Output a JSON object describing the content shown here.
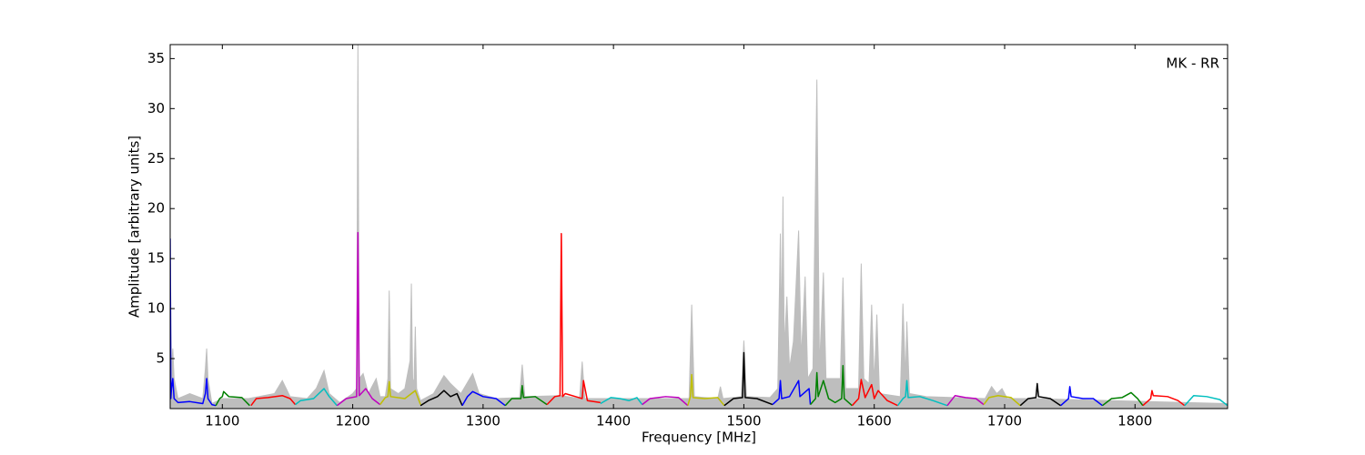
{
  "chart_data": {
    "type": "line",
    "xlabel": "Frequency [MHz]",
    "ylabel": "Amplitude [arbitrary units]",
    "annotation": "MK - RR",
    "xlim": [
      1060,
      1871
    ],
    "ylim": [
      0,
      36.4
    ],
    "xticks": [
      1100,
      1200,
      1300,
      1400,
      1500,
      1600,
      1700,
      1800
    ],
    "yticks": [
      5,
      10,
      15,
      20,
      25,
      30,
      35
    ],
    "series": [
      {
        "kind": "area",
        "color": "#bebebe",
        "x": [
          1060,
          1061,
          1062,
          1063,
          1066,
          1075,
          1085,
          1087,
          1088,
          1089,
          1092,
          1100,
          1120,
          1140,
          1146,
          1152,
          1165,
          1172,
          1178,
          1182,
          1190,
          1200,
          1203,
          1204,
          1205,
          1208,
          1212,
          1216,
          1218,
          1221,
          1225,
          1227,
          1228,
          1229,
          1235,
          1240,
          1244,
          1245,
          1246,
          1247,
          1248,
          1249,
          1252,
          1262,
          1270,
          1275,
          1283,
          1292,
          1297,
          1310,
          1328,
          1330,
          1332,
          1360,
          1374,
          1376,
          1378,
          1400,
          1458,
          1460,
          1462,
          1480,
          1482,
          1484,
          1498,
          1500,
          1502,
          1520,
          1526,
          1528,
          1529,
          1530,
          1531,
          1533,
          1535,
          1538,
          1542,
          1544,
          1547,
          1549,
          1553,
          1556,
          1558,
          1561,
          1563,
          1574,
          1576,
          1578,
          1588,
          1590,
          1592,
          1596,
          1598,
          1600,
          1602,
          1604,
          1620,
          1622,
          1624,
          1625,
          1627,
          1640,
          1685,
          1690,
          1694,
          1698,
          1702,
          1720,
          1871
        ],
        "values": [
          17,
          4,
          6,
          3,
          1,
          1.5,
          1,
          4,
          6,
          3,
          0.5,
          1,
          1,
          1.5,
          2.8,
          1.2,
          1,
          2,
          3.8,
          1.5,
          0.6,
          1.5,
          2,
          36.4,
          3,
          3.5,
          1.5,
          2.5,
          3,
          1.2,
          1.2,
          3,
          11.8,
          2,
          1.5,
          2,
          4.8,
          12.5,
          3,
          2.5,
          8.2,
          2,
          0.8,
          1.5,
          3.3,
          2.5,
          1.5,
          3.5,
          1.5,
          1,
          1.1,
          4.4,
          1.2,
          1.3,
          1,
          4.7,
          1,
          1,
          1,
          10.4,
          1.2,
          1,
          2.2,
          1,
          1.2,
          6.8,
          1.2,
          1.1,
          2,
          17.5,
          8,
          21.2,
          6,
          11.2,
          4,
          6.7,
          17.8,
          5,
          13.2,
          3,
          4,
          32.9,
          4,
          13.6,
          3,
          3,
          13.1,
          2,
          2,
          14.5,
          3,
          2.5,
          10.4,
          2.5,
          9.4,
          1.5,
          1.2,
          10.5,
          3,
          8.7,
          1.5,
          1.2,
          1,
          2.2,
          1.5,
          2,
          1,
          1,
          0.5
        ]
      },
      {
        "color": "#0000ff",
        "x": [
          1060,
          1060.5,
          1061,
          1062,
          1063,
          1066,
          1075,
          1085,
          1087,
          1088,
          1089,
          1092,
          1095
        ],
        "values": [
          17,
          1,
          2,
          3,
          1,
          0.6,
          0.7,
          0.5,
          1.5,
          3,
          1,
          0.4,
          0.3
        ]
      },
      {
        "color": "#008000",
        "x": [
          1095,
          1098,
          1100,
          1101,
          1105,
          1115,
          1121
        ],
        "values": [
          0.3,
          1,
          1.2,
          1.7,
          1.2,
          1.1,
          0.3
        ]
      },
      {
        "color": "#ff0000",
        "x": [
          1122,
          1126,
          1135,
          1146,
          1152,
          1156
        ],
        "values": [
          0.3,
          1,
          1.1,
          1.3,
          1,
          0.4
        ]
      },
      {
        "color": "#00bfbf",
        "x": [
          1156,
          1160,
          1170,
          1178,
          1182,
          1188
        ],
        "values": [
          0.4,
          0.8,
          1,
          2,
          1.2,
          0.3
        ]
      },
      {
        "color": "#bf00bf",
        "x": [
          1188,
          1195,
          1203,
          1204,
          1205,
          1210,
          1215,
          1221
        ],
        "values": [
          0.3,
          1,
          1.2,
          17.6,
          1.3,
          2,
          1,
          0.4
        ]
      },
      {
        "color": "#bfbf00",
        "x": [
          1221,
          1225,
          1227,
          1228,
          1229,
          1240,
          1248,
          1252
        ],
        "values": [
          0.4,
          1.1,
          1.2,
          2.7,
          1.2,
          1,
          1.8,
          0.4
        ]
      },
      {
        "color": "#000000",
        "x": [
          1252,
          1258,
          1265,
          1270,
          1275,
          1280,
          1284
        ],
        "values": [
          0.3,
          0.8,
          1.2,
          1.8,
          1.2,
          1.5,
          0.3
        ]
      },
      {
        "color": "#0000ff",
        "x": [
          1284,
          1288,
          1292,
          1300,
          1310,
          1317
        ],
        "values": [
          0.3,
          1.2,
          1.7,
          1.2,
          1,
          0.3
        ]
      },
      {
        "color": "#008000",
        "x": [
          1317,
          1322,
          1329,
          1330,
          1331,
          1340,
          1349
        ],
        "values": [
          0.3,
          1,
          1,
          2.3,
          1.1,
          1.2,
          0.4
        ]
      },
      {
        "color": "#ff0000",
        "x": [
          1349,
          1355,
          1359,
          1360,
          1361,
          1363,
          1376,
          1377,
          1380,
          1390
        ],
        "values": [
          0.4,
          1.2,
          1.3,
          17.5,
          1.2,
          1.5,
          1,
          2.8,
          0.8,
          0.6
        ]
      },
      {
        "color": "#00bfbf",
        "x": [
          1390,
          1398,
          1405,
          1412,
          1418,
          1422
        ],
        "values": [
          0.5,
          1.1,
          1,
          0.8,
          1.1,
          0.4
        ]
      },
      {
        "color": "#bf00bf",
        "x": [
          1422,
          1428,
          1440,
          1450,
          1457
        ],
        "values": [
          0.4,
          1,
          1.2,
          1.1,
          0.3
        ]
      },
      {
        "color": "#bfbf00",
        "x": [
          1457,
          1459,
          1460,
          1461,
          1470,
          1480,
          1485
        ],
        "values": [
          0.3,
          1.2,
          3.4,
          1.1,
          1,
          1.1,
          0.3
        ]
      },
      {
        "color": "#000000",
        "x": [
          1485,
          1492,
          1499,
          1500,
          1501,
          1510,
          1522
        ],
        "values": [
          0.3,
          1,
          1.1,
          5.6,
          1.1,
          1,
          0.4
        ]
      },
      {
        "color": "#0000ff",
        "x": [
          1522,
          1527,
          1528,
          1529,
          1535,
          1542,
          1543,
          1550,
          1551
        ],
        "values": [
          0.4,
          1,
          2.8,
          1,
          1.2,
          2.8,
          1.2,
          2,
          0.4
        ]
      },
      {
        "color": "#008000",
        "x": [
          1551,
          1555,
          1556,
          1557,
          1561,
          1565,
          1570,
          1575,
          1576,
          1577,
          1583
        ],
        "values": [
          0.4,
          1,
          3.6,
          1.2,
          2.8,
          1,
          0.6,
          1,
          4.3,
          1,
          0.3
        ]
      },
      {
        "color": "#ff0000",
        "x": [
          1583,
          1588,
          1590,
          1593,
          1598,
          1600,
          1603,
          1610,
          1618
        ],
        "values": [
          0.3,
          1,
          2.9,
          1.1,
          2.4,
          1,
          1.8,
          0.8,
          0.3
        ]
      },
      {
        "color": "#00bfbf",
        "x": [
          1618,
          1622,
          1624,
          1625,
          1626,
          1635,
          1645,
          1656
        ],
        "values": [
          0.3,
          1,
          1.2,
          2.8,
          1.1,
          1.2,
          0.8,
          0.3
        ]
      },
      {
        "color": "#bf00bf",
        "x": [
          1656,
          1662,
          1670,
          1678,
          1684
        ],
        "values": [
          0.3,
          1.3,
          1.1,
          1,
          0.4
        ]
      },
      {
        "color": "#bfbf00",
        "x": [
          1684,
          1688,
          1695,
          1705,
          1712
        ],
        "values": [
          0.4,
          1.1,
          1.3,
          1.1,
          0.3
        ]
      },
      {
        "color": "#000000",
        "x": [
          1712,
          1718,
          1724,
          1725,
          1726,
          1735,
          1743
        ],
        "values": [
          0.3,
          1,
          1.1,
          2.5,
          1.2,
          1,
          0.3
        ]
      },
      {
        "color": "#0000ff",
        "x": [
          1743,
          1749,
          1750,
          1751,
          1760,
          1768,
          1775
        ],
        "values": [
          0.3,
          1,
          2.2,
          1.2,
          1,
          1,
          0.3
        ]
      },
      {
        "color": "#008000",
        "x": [
          1775,
          1782,
          1790,
          1797,
          1802,
          1806
        ],
        "values": [
          0.3,
          1,
          1.1,
          1.6,
          1,
          0.3
        ]
      },
      {
        "color": "#ff0000",
        "x": [
          1806,
          1812,
          1813,
          1814,
          1825,
          1833,
          1838
        ],
        "values": [
          0.3,
          1,
          1.8,
          1.3,
          1.2,
          0.8,
          0.3
        ]
      },
      {
        "color": "#00bfbf",
        "x": [
          1838,
          1845,
          1855,
          1865,
          1871
        ],
        "values": [
          0.3,
          1.3,
          1.2,
          0.9,
          0.3
        ]
      }
    ]
  }
}
